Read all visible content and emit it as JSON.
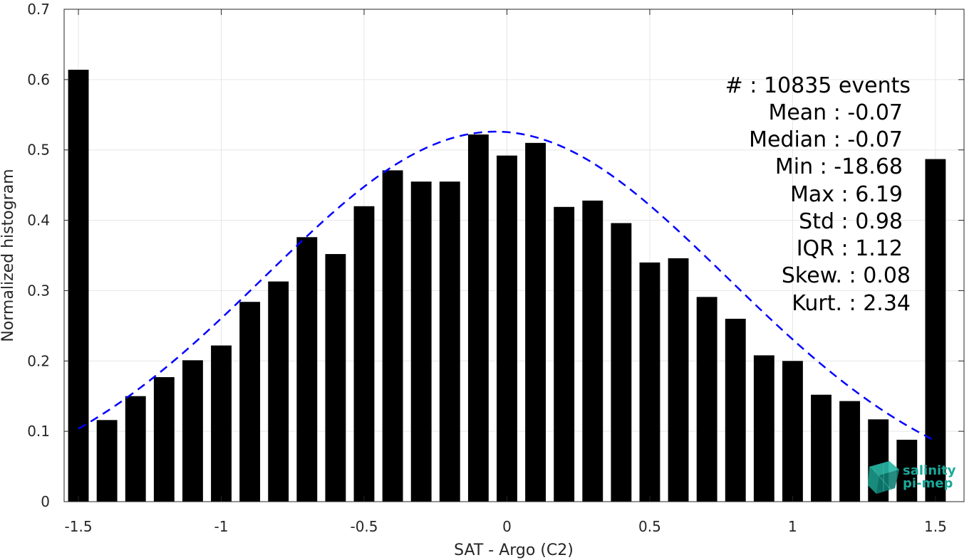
{
  "chart_data": {
    "type": "bar",
    "xlabel": "SAT - Argo (C2)",
    "ylabel": "Normalized histogram",
    "xlim": [
      -1.55,
      1.6
    ],
    "ylim": [
      0,
      0.7
    ],
    "xticks": [
      -1.5,
      -1,
      -0.5,
      0,
      0.5,
      1,
      1.5
    ],
    "xtick_labels": [
      "-1.5",
      "-1",
      "-0.5",
      "0",
      "0.5",
      "1",
      "1.5"
    ],
    "yticks": [
      0,
      0.1,
      0.2,
      0.3,
      0.4,
      0.5,
      0.6,
      0.7
    ],
    "ytick_labels": [
      "0",
      "0.1",
      "0.2",
      "0.3",
      "0.4",
      "0.5",
      "0.6",
      "0.7"
    ],
    "grid": true,
    "bar_color": "#000000",
    "fit_color": "#0000ff",
    "x": [
      -1.5,
      -1.4,
      -1.3,
      -1.2,
      -1.1,
      -1.0,
      -0.9,
      -0.8,
      -0.7,
      -0.6,
      -0.5,
      -0.4,
      -0.3,
      -0.2,
      -0.1,
      0.0,
      0.1,
      0.2,
      0.3,
      0.4,
      0.5,
      0.6,
      0.7,
      0.8,
      0.9,
      1.0,
      1.1,
      1.2,
      1.3,
      1.4,
      1.5
    ],
    "values": [
      0.614,
      0.116,
      0.15,
      0.177,
      0.201,
      0.222,
      0.284,
      0.313,
      0.376,
      0.352,
      0.42,
      0.471,
      0.455,
      0.455,
      0.522,
      0.492,
      0.51,
      0.419,
      0.428,
      0.396,
      0.34,
      0.346,
      0.291,
      0.26,
      0.208,
      0.2,
      0.152,
      0.143,
      0.117,
      0.088,
      0.487
    ],
    "fit": {
      "style": "dashed",
      "mean": -0.04,
      "sigma": 0.81,
      "peak": 0.526,
      "x_range": [
        -1.5,
        1.5
      ]
    },
    "stats": [
      {
        "label": "#  : 10835 events"
      },
      {
        "label": "Mean : -0.07"
      },
      {
        "label": "Median : -0.07"
      },
      {
        "label": "Min : -18.68"
      },
      {
        "label": "Max : 6.19"
      },
      {
        "label": "Std : 0.98"
      },
      {
        "label": "IQR : 1.12"
      },
      {
        "label": "Skew. : 0.08"
      },
      {
        "label": "Kurt. : 2.34"
      }
    ]
  },
  "logo": {
    "line1": "salinity",
    "line2": "pi-mep",
    "icon": "cube-logo-icon"
  }
}
